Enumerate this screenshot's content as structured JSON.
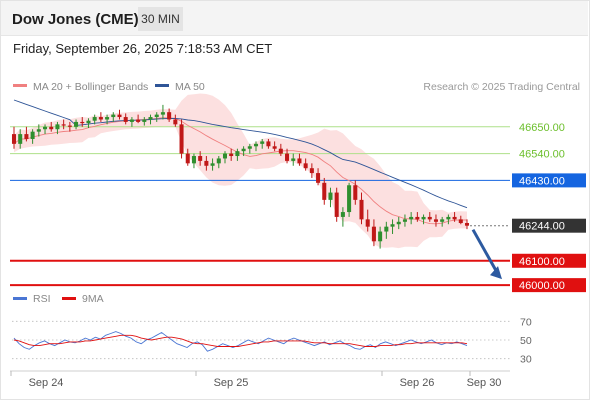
{
  "header": {
    "title": "Dow Jones (CME)",
    "timeframe": "30 MIN"
  },
  "datetime": "Friday, September 26, 2025 7:18:53 AM CET",
  "chart_data": [
    {
      "type": "candlestick",
      "title": "Dow Jones (CME)",
      "legend": [
        {
          "name": "MA 20 + Bollinger Bands",
          "color": "#f08080"
        },
        {
          "name": "MA 50",
          "color": "#2f5597"
        }
      ],
      "credit": "Research © 2025 Trading Central",
      "x_tick_labels": [
        "Sep 24",
        "Sep 25",
        "Sep 26",
        "Sep 30"
      ],
      "ylim": [
        45980,
        46760
      ],
      "levels": [
        {
          "label": "46650.00",
          "value": 46650,
          "color": "#aee08a",
          "label_bg": "#ffffff",
          "label_color": "#6cbf2c",
          "line": "solid"
        },
        {
          "label": "46540.00",
          "value": 46540,
          "color": "#aee08a",
          "label_bg": "#ffffff",
          "label_color": "#6cbf2c",
          "line": "solid"
        },
        {
          "label": "46430.00",
          "value": 46430,
          "color": "#1565e0",
          "label_bg": "#1565e0",
          "label_color": "#ffffff",
          "line": "solid"
        },
        {
          "label": "46244.00",
          "value": 46244,
          "color": "#777777",
          "label_bg": "#333333",
          "label_color": "#ffffff",
          "line": "dotted"
        },
        {
          "label": "46100.00",
          "value": 46100,
          "color": "#e01010",
          "label_bg": "#e01010",
          "label_color": "#ffffff",
          "line": "solid"
        },
        {
          "label": "46000.00",
          "value": 46000,
          "color": "#e01010",
          "label_bg": "#e01010",
          "label_color": "#ffffff",
          "line": "solid"
        }
      ],
      "candles": [
        [
          46620,
          46650,
          46560,
          46580
        ],
        [
          46580,
          46640,
          46560,
          46620
        ],
        [
          46620,
          46650,
          46590,
          46600
        ],
        [
          46600,
          46640,
          46580,
          46630
        ],
        [
          46630,
          46660,
          46610,
          46640
        ],
        [
          46640,
          46660,
          46620,
          46650
        ],
        [
          46650,
          46670,
          46630,
          46640
        ],
        [
          46640,
          46670,
          46620,
          46660
        ],
        [
          46660,
          46680,
          46640,
          46655
        ],
        [
          46655,
          46670,
          46630,
          46650
        ],
        [
          46650,
          46680,
          46640,
          46670
        ],
        [
          46670,
          46690,
          46650,
          46665
        ],
        [
          46665,
          46685,
          46645,
          46675
        ],
        [
          46675,
          46700,
          46660,
          46690
        ],
        [
          46690,
          46710,
          46670,
          46680
        ],
        [
          46680,
          46700,
          46660,
          46690
        ],
        [
          46690,
          46710,
          46670,
          46700
        ],
        [
          46700,
          46720,
          46680,
          46690
        ],
        [
          46690,
          46705,
          46660,
          46670
        ],
        [
          46670,
          46690,
          46650,
          46680
        ],
        [
          46680,
          46700,
          46665,
          46670
        ],
        [
          46670,
          46690,
          46655,
          46680
        ],
        [
          46680,
          46700,
          46660,
          46690
        ],
        [
          46690,
          46710,
          46670,
          46700
        ],
        [
          46700,
          46740,
          46680,
          46710
        ],
        [
          46710,
          46725,
          46670,
          46680
        ],
        [
          46680,
          46700,
          46650,
          46660
        ],
        [
          46660,
          46680,
          46520,
          46540
        ],
        [
          46540,
          46560,
          46490,
          46500
        ],
        [
          46500,
          46540,
          46480,
          46530
        ],
        [
          46530,
          46550,
          46490,
          46510
        ],
        [
          46510,
          46530,
          46470,
          46490
        ],
        [
          46490,
          46520,
          46470,
          46500
        ],
        [
          46500,
          46530,
          46480,
          46520
        ],
        [
          46520,
          46550,
          46500,
          46540
        ],
        [
          46540,
          46560,
          46510,
          46530
        ],
        [
          46530,
          46560,
          46510,
          46550
        ],
        [
          46550,
          46570,
          46530,
          46560
        ],
        [
          46560,
          46580,
          46540,
          46570
        ],
        [
          46570,
          46590,
          46550,
          46580
        ],
        [
          46580,
          46600,
          46560,
          46590
        ],
        [
          46590,
          46600,
          46560,
          46570
        ],
        [
          46570,
          46590,
          46550,
          46560
        ],
        [
          46560,
          46580,
          46530,
          46540
        ],
        [
          46540,
          46560,
          46500,
          46510
        ],
        [
          46510,
          46540,
          46490,
          46520
        ],
        [
          46520,
          46540,
          46490,
          46500
        ],
        [
          46500,
          46520,
          46470,
          46480
        ],
        [
          46480,
          46500,
          46440,
          46460
        ],
        [
          46460,
          46480,
          46410,
          46420
        ],
        [
          46420,
          46440,
          46330,
          46350
        ],
        [
          46350,
          46400,
          46320,
          46380
        ],
        [
          46380,
          46400,
          46260,
          46280
        ],
        [
          46280,
          46320,
          46240,
          46300
        ],
        [
          46300,
          46420,
          46280,
          46410
        ],
        [
          46410,
          46430,
          46330,
          46350
        ],
        [
          46350,
          46380,
          46250,
          46270
        ],
        [
          46270,
          46310,
          46220,
          46240
        ],
        [
          46240,
          46270,
          46160,
          46180
        ],
        [
          46180,
          46240,
          46150,
          46220
        ],
        [
          46220,
          46260,
          46190,
          46240
        ],
        [
          46240,
          46270,
          46210,
          46250
        ],
        [
          46250,
          46280,
          46230,
          46260
        ],
        [
          46260,
          46290,
          46240,
          46270
        ],
        [
          46270,
          46300,
          46250,
          46280
        ],
        [
          46280,
          46300,
          46260,
          46270
        ],
        [
          46270,
          46290,
          46250,
          46280
        ],
        [
          46280,
          46300,
          46260,
          46270
        ],
        [
          46270,
          46290,
          46240,
          46260
        ],
        [
          46260,
          46280,
          46240,
          46270
        ],
        [
          46270,
          46290,
          46250,
          46280
        ],
        [
          46280,
          46300,
          46260,
          46270
        ],
        [
          46270,
          46285,
          46250,
          46255
        ],
        [
          46255,
          46270,
          46230,
          46244
        ]
      ]
    },
    {
      "type": "line",
      "legend": [
        {
          "name": "RSI",
          "color": "#4a76d4"
        },
        {
          "name": "9MA",
          "color": "#e01010"
        }
      ],
      "y_tick_labels": [
        "70",
        "50",
        "30"
      ],
      "ylim": [
        20,
        80
      ],
      "rsi": [
        52,
        46,
        42,
        40,
        44,
        47,
        49,
        46,
        44,
        47,
        50,
        48,
        47,
        49,
        52,
        50,
        53,
        51,
        55,
        57,
        59,
        57,
        54,
        52,
        48,
        46,
        50,
        52,
        55,
        58,
        54,
        50,
        46,
        44,
        42,
        46,
        48,
        45,
        38,
        40,
        43,
        46,
        44,
        42,
        44,
        47,
        50,
        48,
        46,
        49,
        52,
        50,
        48,
        46,
        50,
        52,
        50,
        48,
        46,
        44,
        46,
        48,
        45,
        47,
        49,
        46,
        44,
        41,
        40,
        43,
        45,
        42,
        46,
        48,
        46,
        44,
        46,
        48,
        50,
        48,
        46,
        48,
        50,
        47,
        45,
        47,
        46,
        48,
        46,
        44
      ],
      "ma9": [
        50,
        49,
        47,
        45,
        44,
        44,
        45,
        46,
        46,
        46,
        47,
        48,
        48,
        48,
        49,
        49,
        50,
        51,
        52,
        53,
        54,
        55,
        55,
        55,
        54,
        52,
        51,
        50,
        51,
        52,
        53,
        53,
        52,
        51,
        49,
        47,
        46,
        46,
        45,
        44,
        43,
        43,
        43,
        43,
        43,
        44,
        45,
        46,
        47,
        48,
        48,
        49,
        49,
        49,
        49,
        49,
        49,
        49,
        48,
        47,
        47,
        47,
        46,
        46,
        46,
        46,
        46,
        45,
        44,
        43,
        43,
        43,
        44,
        44,
        44,
        45,
        45,
        46,
        46,
        47,
        47,
        47,
        47,
        47,
        47,
        47,
        47,
        47,
        47,
        46
      ]
    }
  ]
}
